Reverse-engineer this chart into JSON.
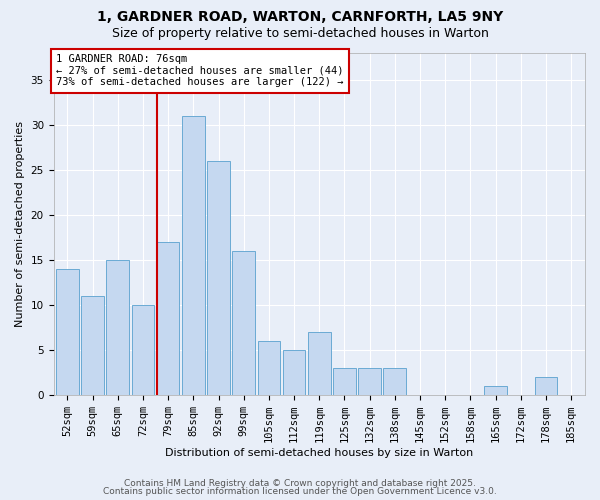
{
  "title1": "1, GARDNER ROAD, WARTON, CARNFORTH, LA5 9NY",
  "title2": "Size of property relative to semi-detached houses in Warton",
  "xlabel": "Distribution of semi-detached houses by size in Warton",
  "ylabel": "Number of semi-detached properties",
  "categories": [
    "52sqm",
    "59sqm",
    "65sqm",
    "72sqm",
    "79sqm",
    "85sqm",
    "92sqm",
    "99sqm",
    "105sqm",
    "112sqm",
    "119sqm",
    "125sqm",
    "132sqm",
    "138sqm",
    "145sqm",
    "152sqm",
    "158sqm",
    "165sqm",
    "172sqm",
    "178sqm",
    "185sqm"
  ],
  "values": [
    14,
    11,
    15,
    10,
    17,
    31,
    26,
    16,
    6,
    5,
    7,
    3,
    3,
    3,
    0,
    0,
    0,
    1,
    0,
    2,
    0
  ],
  "bar_color": "#c5d8f0",
  "bar_edge_color": "#6aaad4",
  "red_line_index": 4,
  "annotation_text_line1": "1 GARDNER ROAD: 76sqm",
  "annotation_text_line2": "← 27% of semi-detached houses are smaller (44)",
  "annotation_text_line3": "73% of semi-detached houses are larger (122) →",
  "box_color": "#cc0000",
  "ylim": [
    0,
    38
  ],
  "yticks": [
    0,
    5,
    10,
    15,
    20,
    25,
    30,
    35
  ],
  "footer1": "Contains HM Land Registry data © Crown copyright and database right 2025.",
  "footer2": "Contains public sector information licensed under the Open Government Licence v3.0.",
  "background_color": "#e8eef8",
  "grid_color": "#ffffff",
  "title_fontsize": 10,
  "subtitle_fontsize": 9,
  "axis_label_fontsize": 8,
  "tick_fontsize": 7.5,
  "annotation_fontsize": 7.5,
  "footer_fontsize": 6.5
}
